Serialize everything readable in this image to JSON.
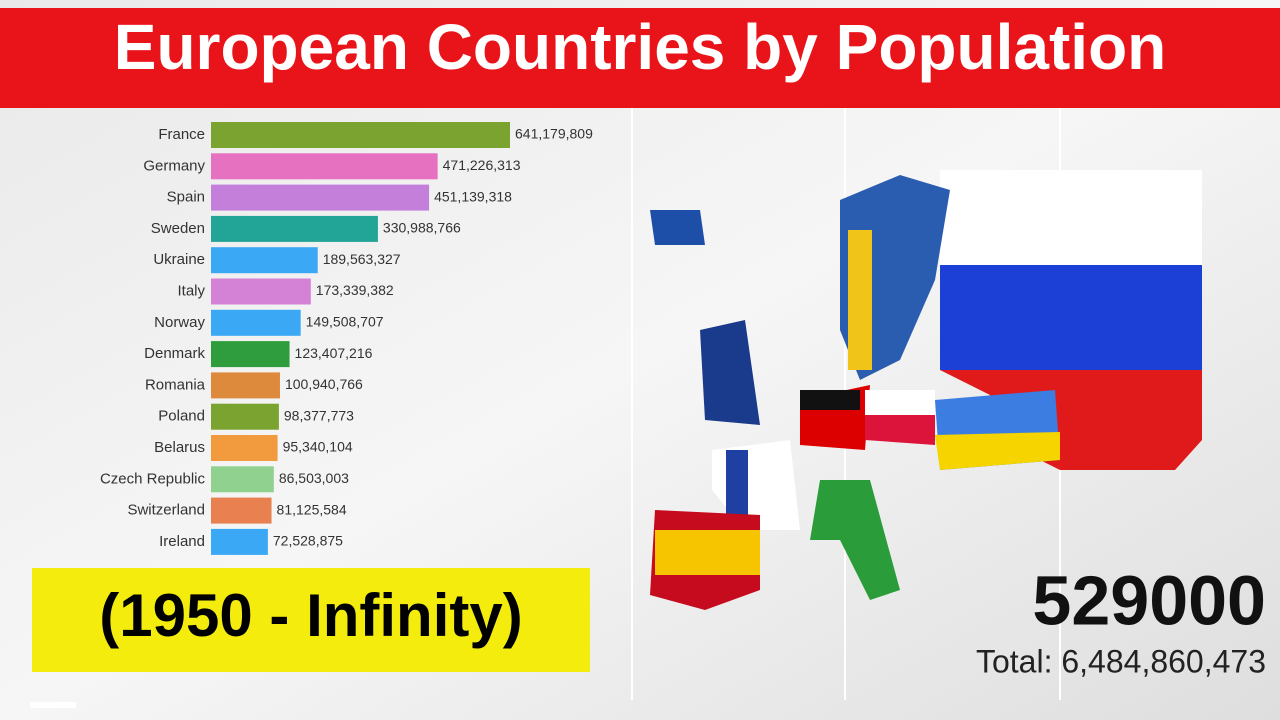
{
  "chart_data": {
    "type": "bar",
    "orientation": "horizontal",
    "title": "European Countries by Population",
    "subtitle": "(1950 - Infinity)",
    "period": 529000,
    "total": "Total: 6,484,860,473",
    "categories": [
      "France",
      "Germany",
      "Spain",
      "Sweden",
      "Ukraine",
      "Italy",
      "Norway",
      "Denmark",
      "Romania",
      "Poland",
      "Belarus",
      "Czech Republic",
      "Switzerland",
      "Ireland"
    ],
    "series": [
      {
        "colors": [
          "#7ba32f",
          "#e571c0",
          "#c47fdb",
          "#22a596",
          "#3aa8f5",
          "#d482d6",
          "#3aa8f5",
          "#2f9d3d",
          "#de8a3d",
          "#7ba32f",
          "#f29b3e",
          "#90d18f",
          "#e8814f",
          "#3aa8f5"
        ],
        "values": [
          641179809,
          471226313,
          451139318,
          330988766,
          189563327,
          173339382,
          149508707,
          123407216,
          100940766,
          98377773,
          95340104,
          86503003,
          81125584,
          72528875
        ],
        "value_labels": [
          "641,179,809",
          "471,226,313",
          "451,139,318",
          "330,988,766",
          "189,563,327",
          "173,339,382",
          "149,508,707",
          "123,407,216",
          "100,940,766",
          "98,377,773",
          "95,340,104",
          "86,503,003",
          "81,125,584",
          "72,528,875"
        ]
      }
    ]
  }
}
